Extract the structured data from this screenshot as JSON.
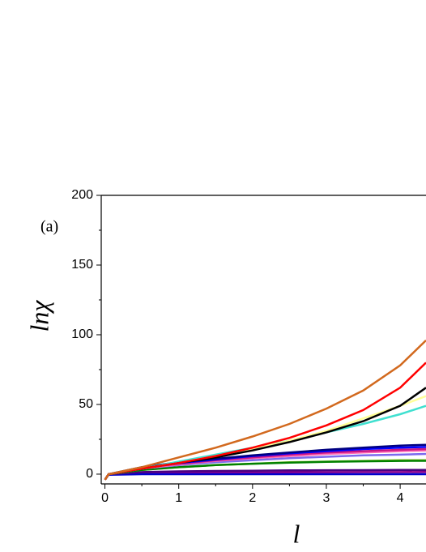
{
  "chart_data": {
    "type": "line",
    "annotation": "(a)",
    "xlabel": "l",
    "ylabel": "lnχ",
    "x": [
      0,
      0.05,
      0.5,
      1,
      1.5,
      2,
      2.5,
      3,
      3.5,
      4,
      4.35
    ],
    "xlim": [
      -0.05,
      4.35
    ],
    "xticks": [
      0,
      1,
      2,
      3,
      4
    ],
    "xminor": [
      0.5,
      1.5,
      2.5,
      3.5
    ],
    "ylim": [
      -7,
      200
    ],
    "yticks": [
      0,
      50,
      100,
      150,
      200
    ],
    "yminor": [
      25,
      75,
      125,
      175
    ],
    "series": [
      {
        "color": "#8b008b",
        "values": [
          -4,
          0,
          0.5,
          0.8,
          1,
          1.2,
          1.3,
          1.4,
          1.5,
          1.5,
          1.6
        ]
      },
      {
        "color": "#0000cd",
        "values": [
          -4,
          -0.5,
          0,
          0,
          0,
          0,
          0,
          0,
          0,
          0,
          0
        ]
      },
      {
        "color": "#4b0082",
        "values": [
          -4,
          0,
          1.5,
          2,
          2.3,
          2.5,
          2.7,
          2.8,
          2.9,
          3,
          3
        ]
      },
      {
        "color": "#9acd32",
        "values": [
          -4,
          0,
          3,
          5,
          6.5,
          7.5,
          8.5,
          9,
          9.5,
          10,
          10
        ]
      },
      {
        "color": "#008000",
        "values": [
          -4,
          0,
          3,
          5,
          6.5,
          7.5,
          8.3,
          8.8,
          9.2,
          9.5,
          9.6
        ]
      },
      {
        "color": "#7b68ee",
        "values": [
          -4,
          0,
          4,
          6.5,
          8.5,
          10,
          11.5,
          12.5,
          13.5,
          14,
          14.5
        ]
      },
      {
        "color": "#ff69b4",
        "values": [
          -4,
          0,
          4,
          7,
          9.5,
          11.5,
          13,
          14.5,
          15.5,
          16.5,
          17
        ]
      },
      {
        "color": "#c71585",
        "values": [
          -4,
          0,
          4.5,
          7.5,
          10,
          12,
          14,
          15.5,
          16.5,
          17.5,
          18
        ]
      },
      {
        "color": "#0000ff",
        "values": [
          -4,
          0,
          4.5,
          8,
          10.5,
          13,
          15,
          16.5,
          18,
          19,
          19.5
        ]
      },
      {
        "color": "#000080",
        "values": [
          -4,
          0,
          5,
          8.5,
          11,
          13.5,
          15.5,
          17.5,
          19,
          20.5,
          21
        ]
      },
      {
        "color": "#40e0d0",
        "values": [
          -4,
          0,
          4,
          9,
          14,
          19,
          24,
          30,
          36,
          43,
          49
        ]
      },
      {
        "color": "#ffff99",
        "values": [
          -4,
          0,
          4,
          8,
          13,
          18,
          24,
          31,
          40,
          49,
          56
        ]
      },
      {
        "color": "#000000",
        "values": [
          -4,
          0,
          4,
          8,
          12,
          17,
          23,
          30,
          38,
          49,
          62
        ]
      },
      {
        "color": "#ff0000",
        "values": [
          -4,
          0,
          4,
          8,
          13,
          19,
          26,
          35,
          46,
          62,
          80
        ]
      },
      {
        "color": "#d2691e",
        "values": [
          -4,
          0,
          5,
          12,
          19,
          27,
          36,
          47,
          60,
          78,
          96
        ]
      }
    ]
  }
}
